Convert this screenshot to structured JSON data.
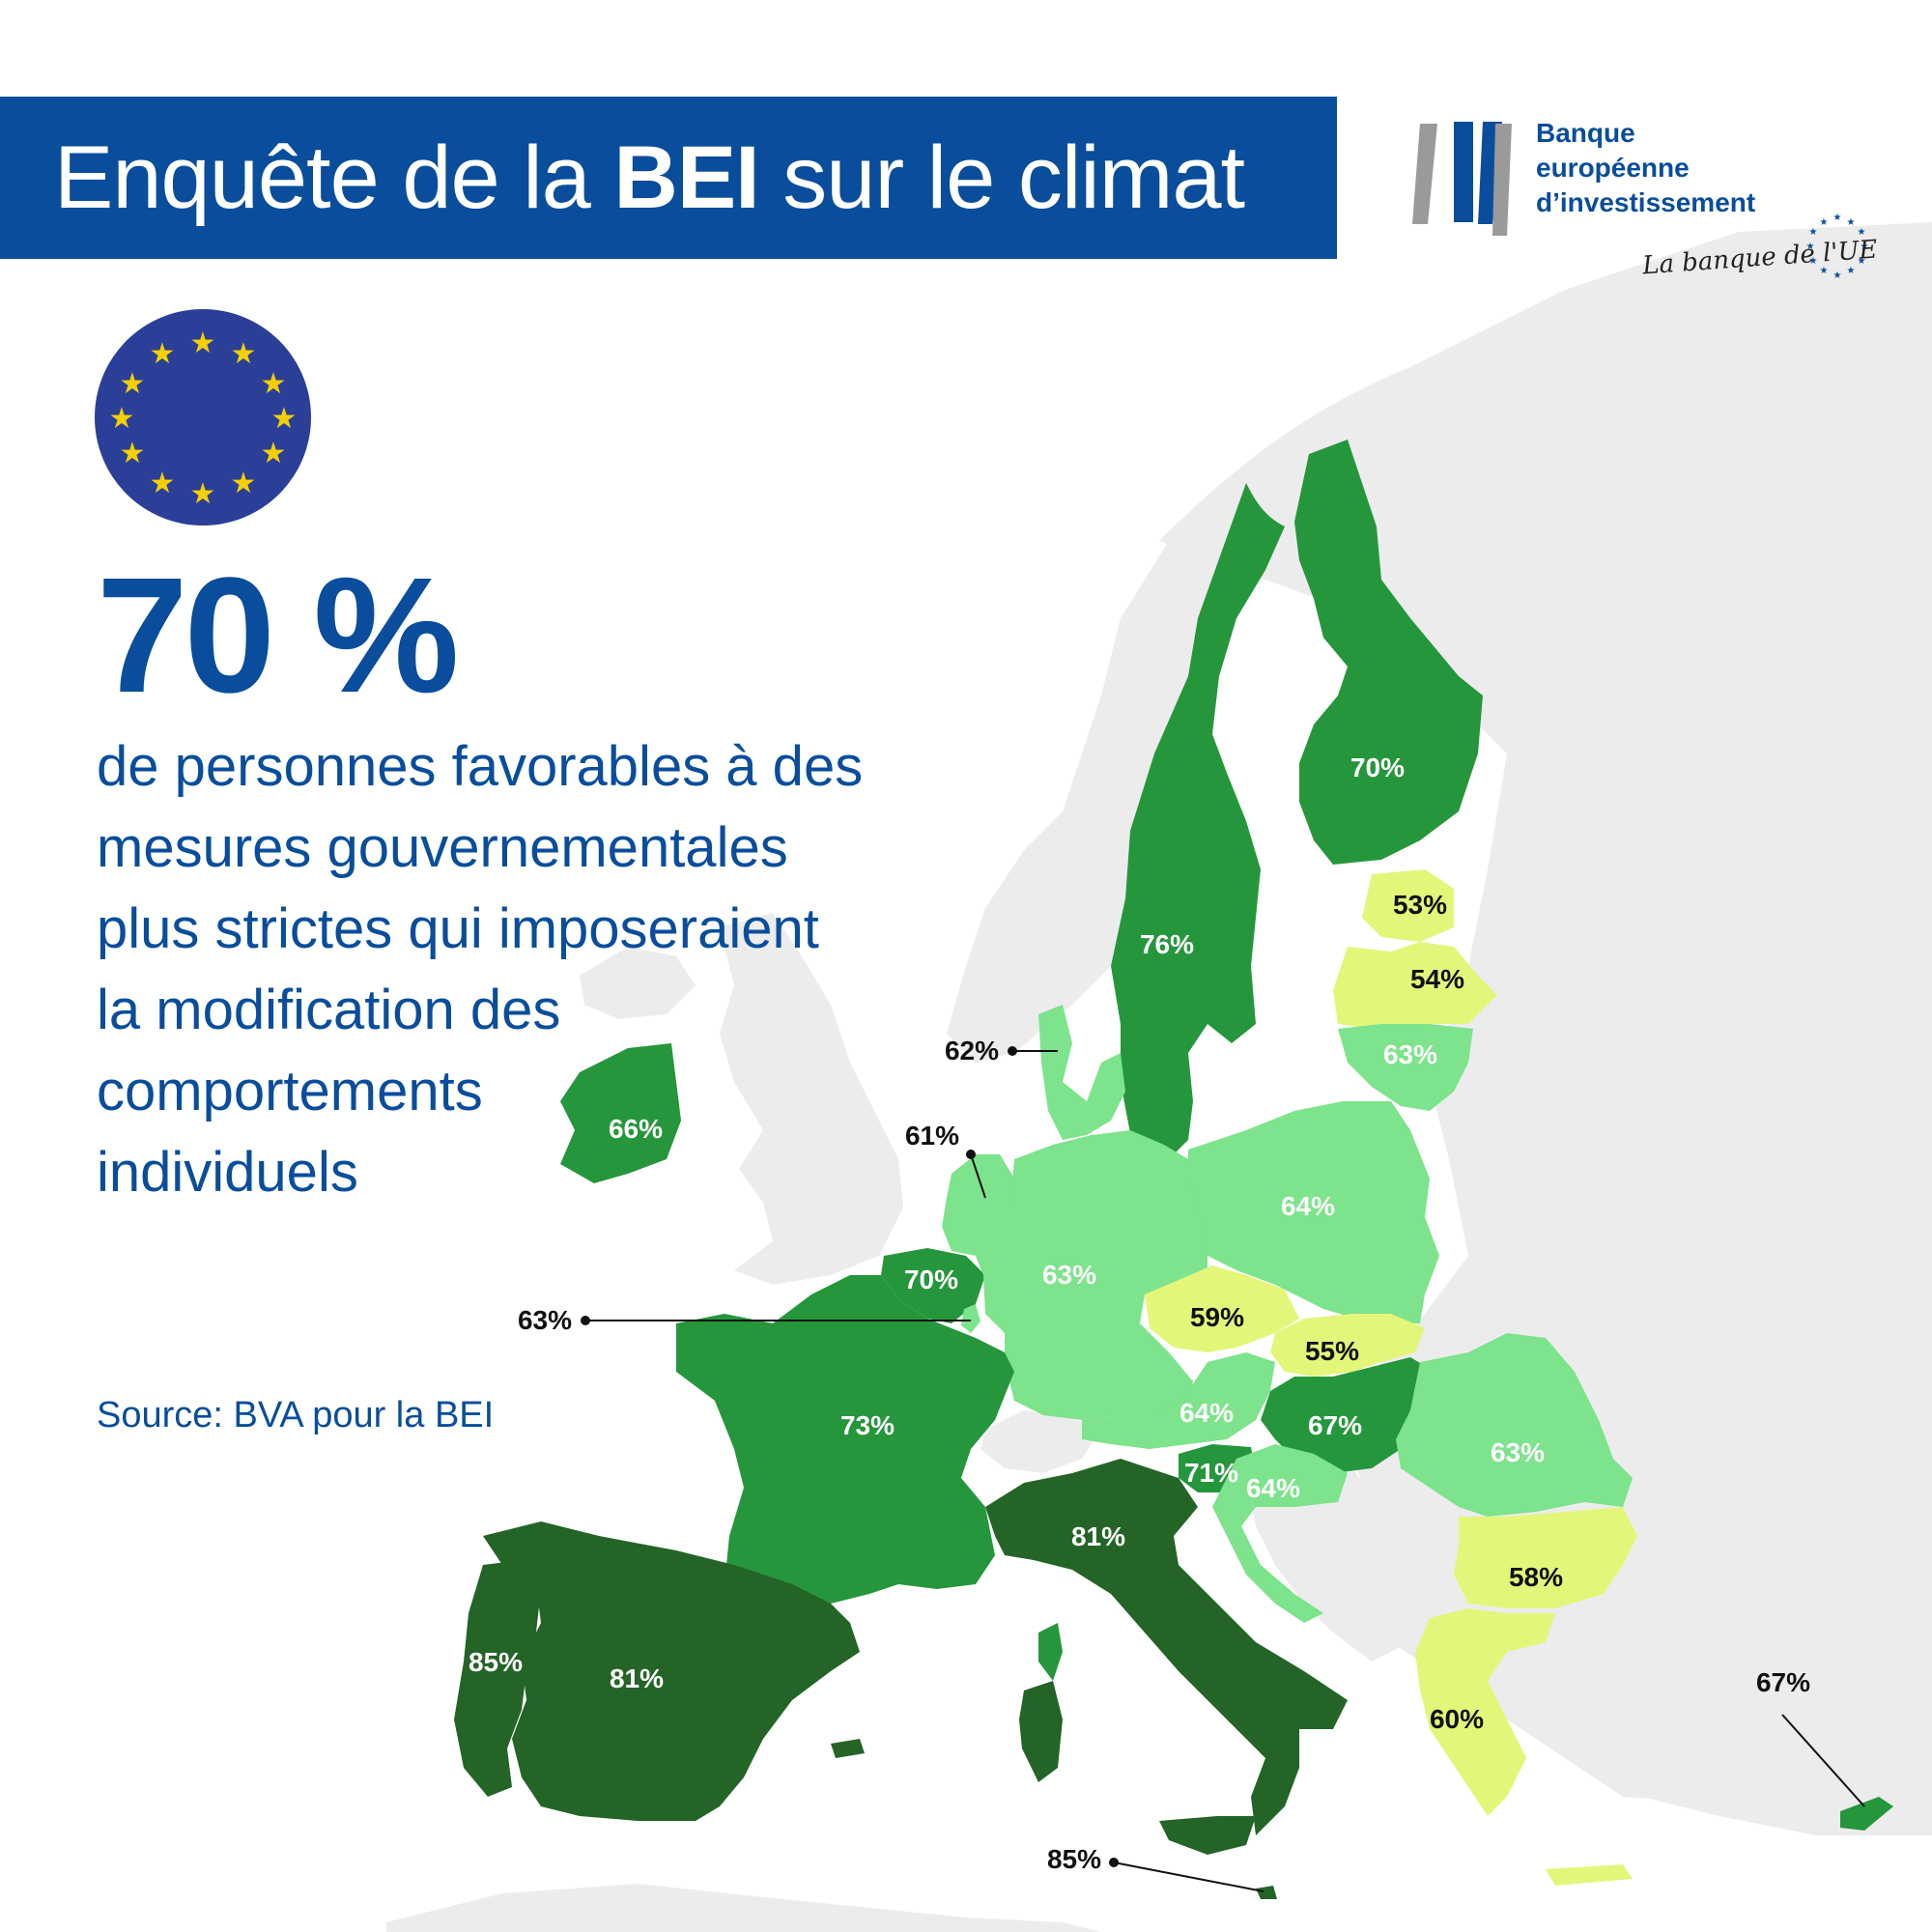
{
  "header": {
    "title_part1": "Enquête de la ",
    "title_bold": "BEI",
    "title_part2": " sur le climat"
  },
  "logo": {
    "line1": "Banque",
    "line2": "européenne",
    "line3": "d’investissement",
    "tagline": "La banque de l'UE"
  },
  "headline": {
    "value": "70 %",
    "lines": [
      "de personnes favorables à des",
      "mesures gouvernementales",
      "plus strictes qui imposeraient",
      "la modification des",
      "comportements",
      "individuels"
    ]
  },
  "source": "Source: BVA pour la BEI",
  "colors": {
    "brand_blue": "#0a4d9c",
    "eu_flag_blue": "#2b3f99",
    "eu_star_yellow": "#f4d000",
    "bucket_50s": "#e3f67a",
    "bucket_60s": "#7de38c",
    "bucket_65_79": "#26963c",
    "bucket_80plus": "#246427",
    "non_eu_land": "#ececec"
  },
  "countries": {
    "finland": "70%",
    "sweden": "76%",
    "estonia": "53%",
    "latvia": "54%",
    "lithuania": "63%",
    "denmark": "62%",
    "netherlands": "61%",
    "ireland": "66%",
    "belgium": "70%",
    "luxembourg": "63%",
    "germany": "63%",
    "poland": "64%",
    "czechia": "59%",
    "slovakia": "55%",
    "austria": "64%",
    "hungary": "67%",
    "romania": "63%",
    "slovenia": "71%",
    "croatia": "64%",
    "france": "73%",
    "italy": "81%",
    "spain": "81%",
    "portugal": "85%",
    "bulgaria": "58%",
    "greece": "60%",
    "cyprus": "67%",
    "malta": "85%"
  }
}
